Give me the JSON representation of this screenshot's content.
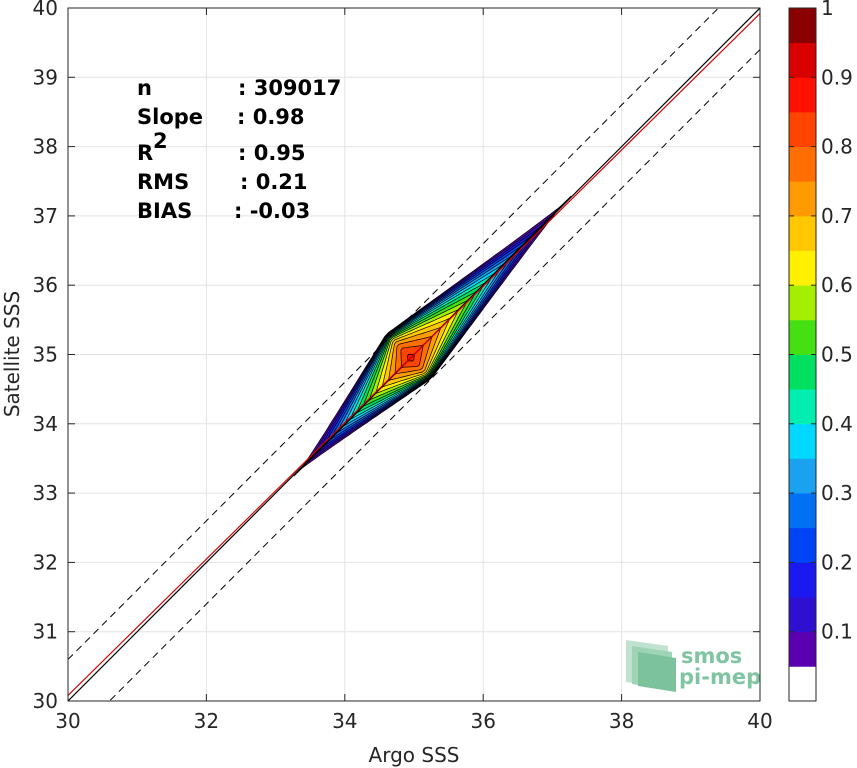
{
  "chart_data": {
    "type": "heatmap",
    "subtype": "filled-contour density scatter",
    "xlabel": "Argo SSS",
    "ylabel": "Satellite SSS",
    "xlim": [
      30,
      40
    ],
    "ylim": [
      30,
      40
    ],
    "xticks": [
      30,
      32,
      34,
      36,
      38,
      40
    ],
    "yticks": [
      30,
      31,
      32,
      33,
      34,
      35,
      36,
      37,
      38,
      39,
      40
    ],
    "grid": true,
    "stats": [
      {
        "label": "n",
        "value": ": 309017"
      },
      {
        "label": "Slope",
        "value": ": 0.98"
      },
      {
        "label": "R",
        "sup": "2",
        "value": ": 0.95"
      },
      {
        "label": "RMS",
        "value": ": 0.21"
      },
      {
        "label": "BIAS",
        "value": ": -0.03"
      }
    ],
    "lines": [
      {
        "role": "one-to-one",
        "style": "solid",
        "color": "#000000",
        "intercept": 0,
        "slope": 1
      },
      {
        "role": "regression",
        "style": "solid",
        "color": "#d40000",
        "intercept": 0.56,
        "slope": 0.984
      },
      {
        "role": "upper bound",
        "style": "dashed",
        "color": "#000000",
        "intercept": 0.6,
        "slope": 1
      },
      {
        "role": "lower bound",
        "style": "dashed",
        "color": "#000000",
        "intercept": -0.6,
        "slope": 1
      }
    ],
    "density_ellipse": {
      "tip_low": [
        33.22,
        33.2
      ],
      "tip_high": [
        37.33,
        37.35
      ],
      "peak": [
        34.95,
        34.95
      ],
      "max_halfwidth_sss": 0.53
    },
    "colorbar": {
      "ticks": [
        "0.1",
        "0.2",
        "0.3",
        "0.4",
        "0.5",
        "0.6",
        "0.7",
        "0.8",
        "0.9",
        "1"
      ],
      "levels": [
        0.05,
        0.1,
        0.15,
        0.2,
        0.25,
        0.3,
        0.35,
        0.4,
        0.45,
        0.5,
        0.55,
        0.6,
        0.65,
        0.7,
        0.75,
        0.8,
        0.85,
        0.9,
        0.95,
        1.0
      ],
      "colors": [
        "#ffffff",
        "#5a00b0",
        "#3010d0",
        "#1a1af0",
        "#0044f5",
        "#0070f5",
        "#1aa2f0",
        "#00d8ff",
        "#00eeb0",
        "#00e060",
        "#44e012",
        "#a4ee00",
        "#fff000",
        "#ffc800",
        "#ff9a00",
        "#ff6e00",
        "#ff4400",
        "#ff1000",
        "#d80000",
        "#8a0000"
      ]
    },
    "logo": {
      "line1": "smos",
      "line2": "pi-mep"
    }
  }
}
